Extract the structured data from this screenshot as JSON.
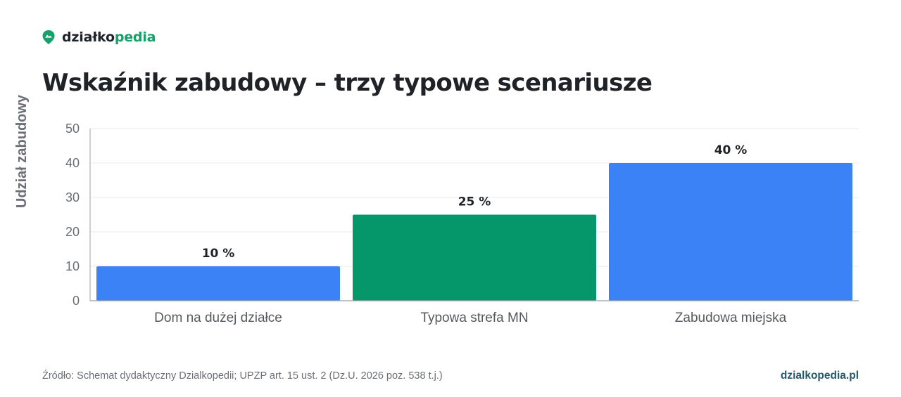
{
  "brand": {
    "name_part1": "działko",
    "name_part2": "pedia",
    "icon": "map-pin-icon",
    "color": "#17a06b"
  },
  "footer": {
    "source": "Źródło: Schemat dydaktyczny Dzialkopedii; UPZP art. 15 ust. 2 (Dz.U. 2026 poz. 538 t.j.)",
    "site": "dzialkopedia.pl"
  },
  "chart_data": {
    "type": "bar",
    "title": "Wskaźnik zabudowy – trzy typowe scenariusze",
    "xlabel": "",
    "ylabel": "Udział zabudowy",
    "categories": [
      "Dom na dużej działce",
      "Typowa strefa MN",
      "Zabudowa miejska"
    ],
    "values": [
      10,
      25,
      40
    ],
    "value_labels": [
      "10 %",
      "25 %",
      "40 %"
    ],
    "colors": [
      "#3b82f6",
      "#059669",
      "#3b82f6"
    ],
    "ylim": [
      0,
      50
    ],
    "yticks": [
      0,
      10,
      20,
      30,
      40,
      50
    ],
    "grid": true,
    "legend": "none"
  }
}
